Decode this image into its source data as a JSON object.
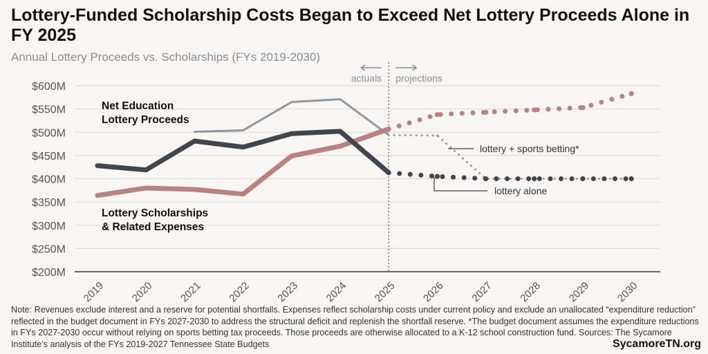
{
  "title": "Lottery-Funded Scholarship Costs Began to Exceed Net Lottery Proceeds Alone in FY 2025",
  "subtitle": "Annual Lottery Proceeds vs. Scholarships (FYs 2019-2030)",
  "note": "Note: Revenues exclude interest and a reserve for potential shortfalls. Expenses reflect scholarship costs under current policy and exclude an unallocated “expenditure reduction” reflected in the budget document in FYs 2027-2030 to address the structural deficit and replenish the shortfall reserve. *The budget document assumes the expenditure reductions in FYs 2027-2030 occur without relying on sports betting tax proceeds. Those proceeds are otherwise allocated to a K-12 school construction fund. Sources: The Sycamore Institute’s analysis of the FYs 2019-2027 Tennessee State Budgets",
  "brand": "SycamoreTN.org",
  "chart_data": {
    "type": "line",
    "x": [
      2019,
      2020,
      2021,
      2022,
      2023,
      2024,
      2025,
      2026,
      2027,
      2028,
      2029,
      2030
    ],
    "ylim": [
      200,
      600
    ],
    "yticks": [
      "$200M",
      "$250M",
      "$300M",
      "$350M",
      "$400M",
      "$450M",
      "$500M",
      "$550M",
      "$600M"
    ],
    "ytick_values": [
      200,
      250,
      300,
      350,
      400,
      450,
      500,
      550,
      600
    ],
    "grid": true,
    "divider_year": 2025,
    "divider_labels": {
      "left": "actuals",
      "right": "projections"
    },
    "series": [
      {
        "name": "Net Education Lottery Proceeds",
        "key": "net",
        "color": "#3f464c",
        "actual": [
          428,
          419,
          481,
          468,
          497,
          502,
          413
        ],
        "projected": [
          413,
          405,
          400,
          400,
          400,
          400
        ],
        "projected_label": "lottery alone"
      },
      {
        "name": "",
        "key": "sports",
        "color": "#8e979e",
        "actual": [
          null,
          null,
          501,
          504,
          565,
          571,
          494
        ],
        "projected": [
          494,
          493,
          400,
          400,
          400,
          400
        ],
        "projected_label": "lottery + sports betting*"
      },
      {
        "name": "Lottery Scholarships & Related Expenses",
        "key": "scholar",
        "color": "#b8827d",
        "actual": [
          364,
          380,
          377,
          367,
          449,
          470,
          507
        ],
        "projected": [
          507,
          538,
          543,
          548,
          553,
          583
        ]
      }
    ],
    "labels": {
      "net_line1": "Net Education",
      "net_line2": "Lottery Proceeds",
      "sch_line1": "Lottery Scholarships",
      "sch_line2": "& Related Expenses"
    }
  }
}
